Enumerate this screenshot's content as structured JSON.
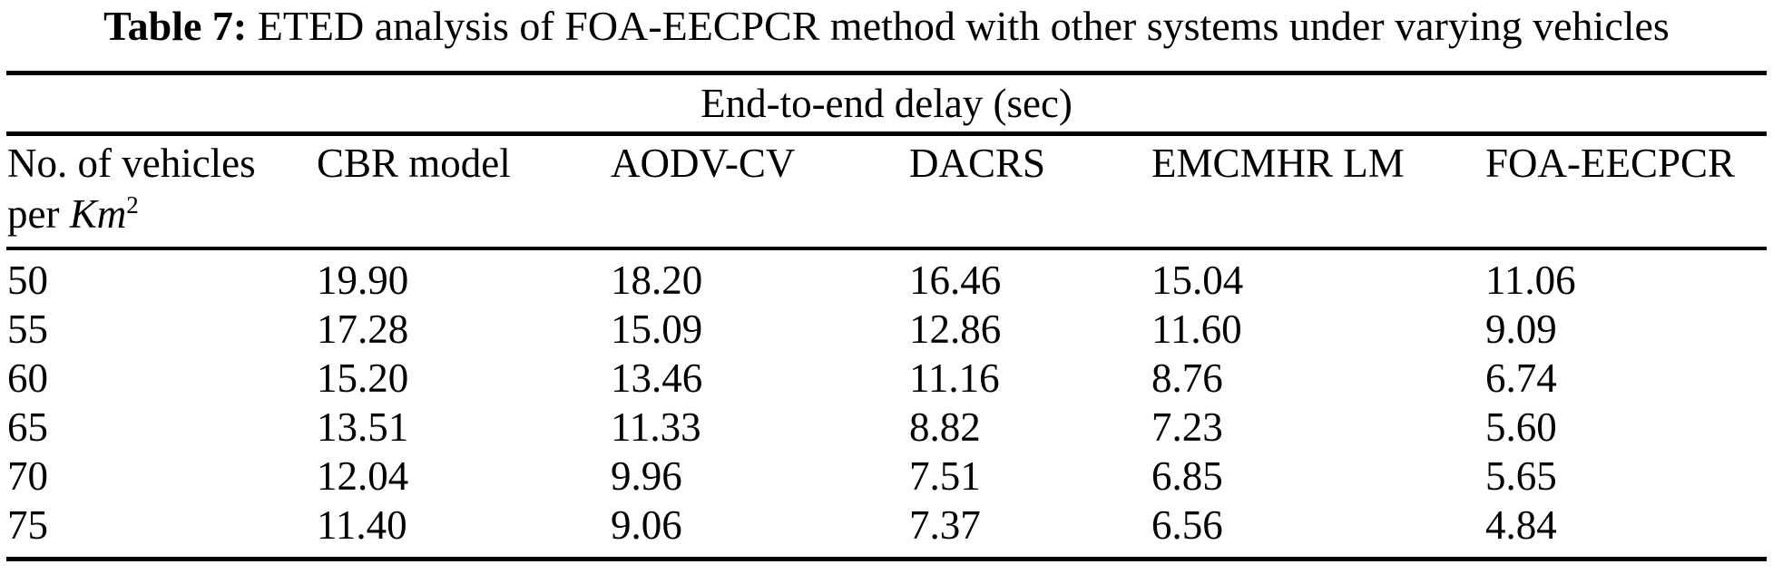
{
  "title": {
    "label": "Table 7:",
    "text": " ETED analysis of FOA-EECPCR method with other systems under varying vehicles"
  },
  "table": {
    "span_header": "End-to-end delay (sec)",
    "col1_header": {
      "line1": "No. of vehicles",
      "line2_prefix": "per ",
      "unit": "Km",
      "unit_sup": "2"
    },
    "columns": [
      "CBR model",
      "AODV-CV",
      "DACRS",
      "EMCMHR LM",
      "FOA-EECPCR"
    ],
    "rows": [
      {
        "vehicles": "50",
        "values": [
          "19.90",
          "18.20",
          "16.46",
          "15.04",
          "11.06"
        ]
      },
      {
        "vehicles": "55",
        "values": [
          "17.28",
          "15.09",
          "12.86",
          "11.60",
          "9.09"
        ]
      },
      {
        "vehicles": "60",
        "values": [
          "15.20",
          "13.46",
          "11.16",
          "8.76",
          "6.74"
        ]
      },
      {
        "vehicles": "65",
        "values": [
          "13.51",
          "11.33",
          "8.82",
          "7.23",
          "5.60"
        ]
      },
      {
        "vehicles": "70",
        "values": [
          "12.04",
          "9.96",
          "7.51",
          "6.85",
          "5.65"
        ]
      },
      {
        "vehicles": "75",
        "values": [
          "11.40",
          "9.06",
          "7.37",
          "6.56",
          "4.84"
        ]
      }
    ]
  },
  "chart_data": {
    "type": "table",
    "title": "Table 7: ETED analysis of FOA-EECPCR method with other systems under varying vehicles",
    "group_header": "End-to-end delay (sec)",
    "categories": [
      50,
      55,
      60,
      65,
      70,
      75
    ],
    "xlabel": "No. of vehicles per Km2",
    "series": [
      {
        "name": "CBR model",
        "values": [
          19.9,
          17.28,
          15.2,
          13.51,
          12.04,
          11.4
        ]
      },
      {
        "name": "AODV-CV",
        "values": [
          18.2,
          15.09,
          13.46,
          11.33,
          9.96,
          9.06
        ]
      },
      {
        "name": "DACRS",
        "values": [
          16.46,
          12.86,
          11.16,
          8.82,
          7.51,
          7.37
        ]
      },
      {
        "name": "EMCMHR LM",
        "values": [
          15.04,
          11.6,
          8.76,
          7.23,
          6.85,
          6.56
        ]
      },
      {
        "name": "FOA-EECPCR",
        "values": [
          11.06,
          9.09,
          6.74,
          5.6,
          5.65,
          4.84
        ]
      }
    ]
  }
}
